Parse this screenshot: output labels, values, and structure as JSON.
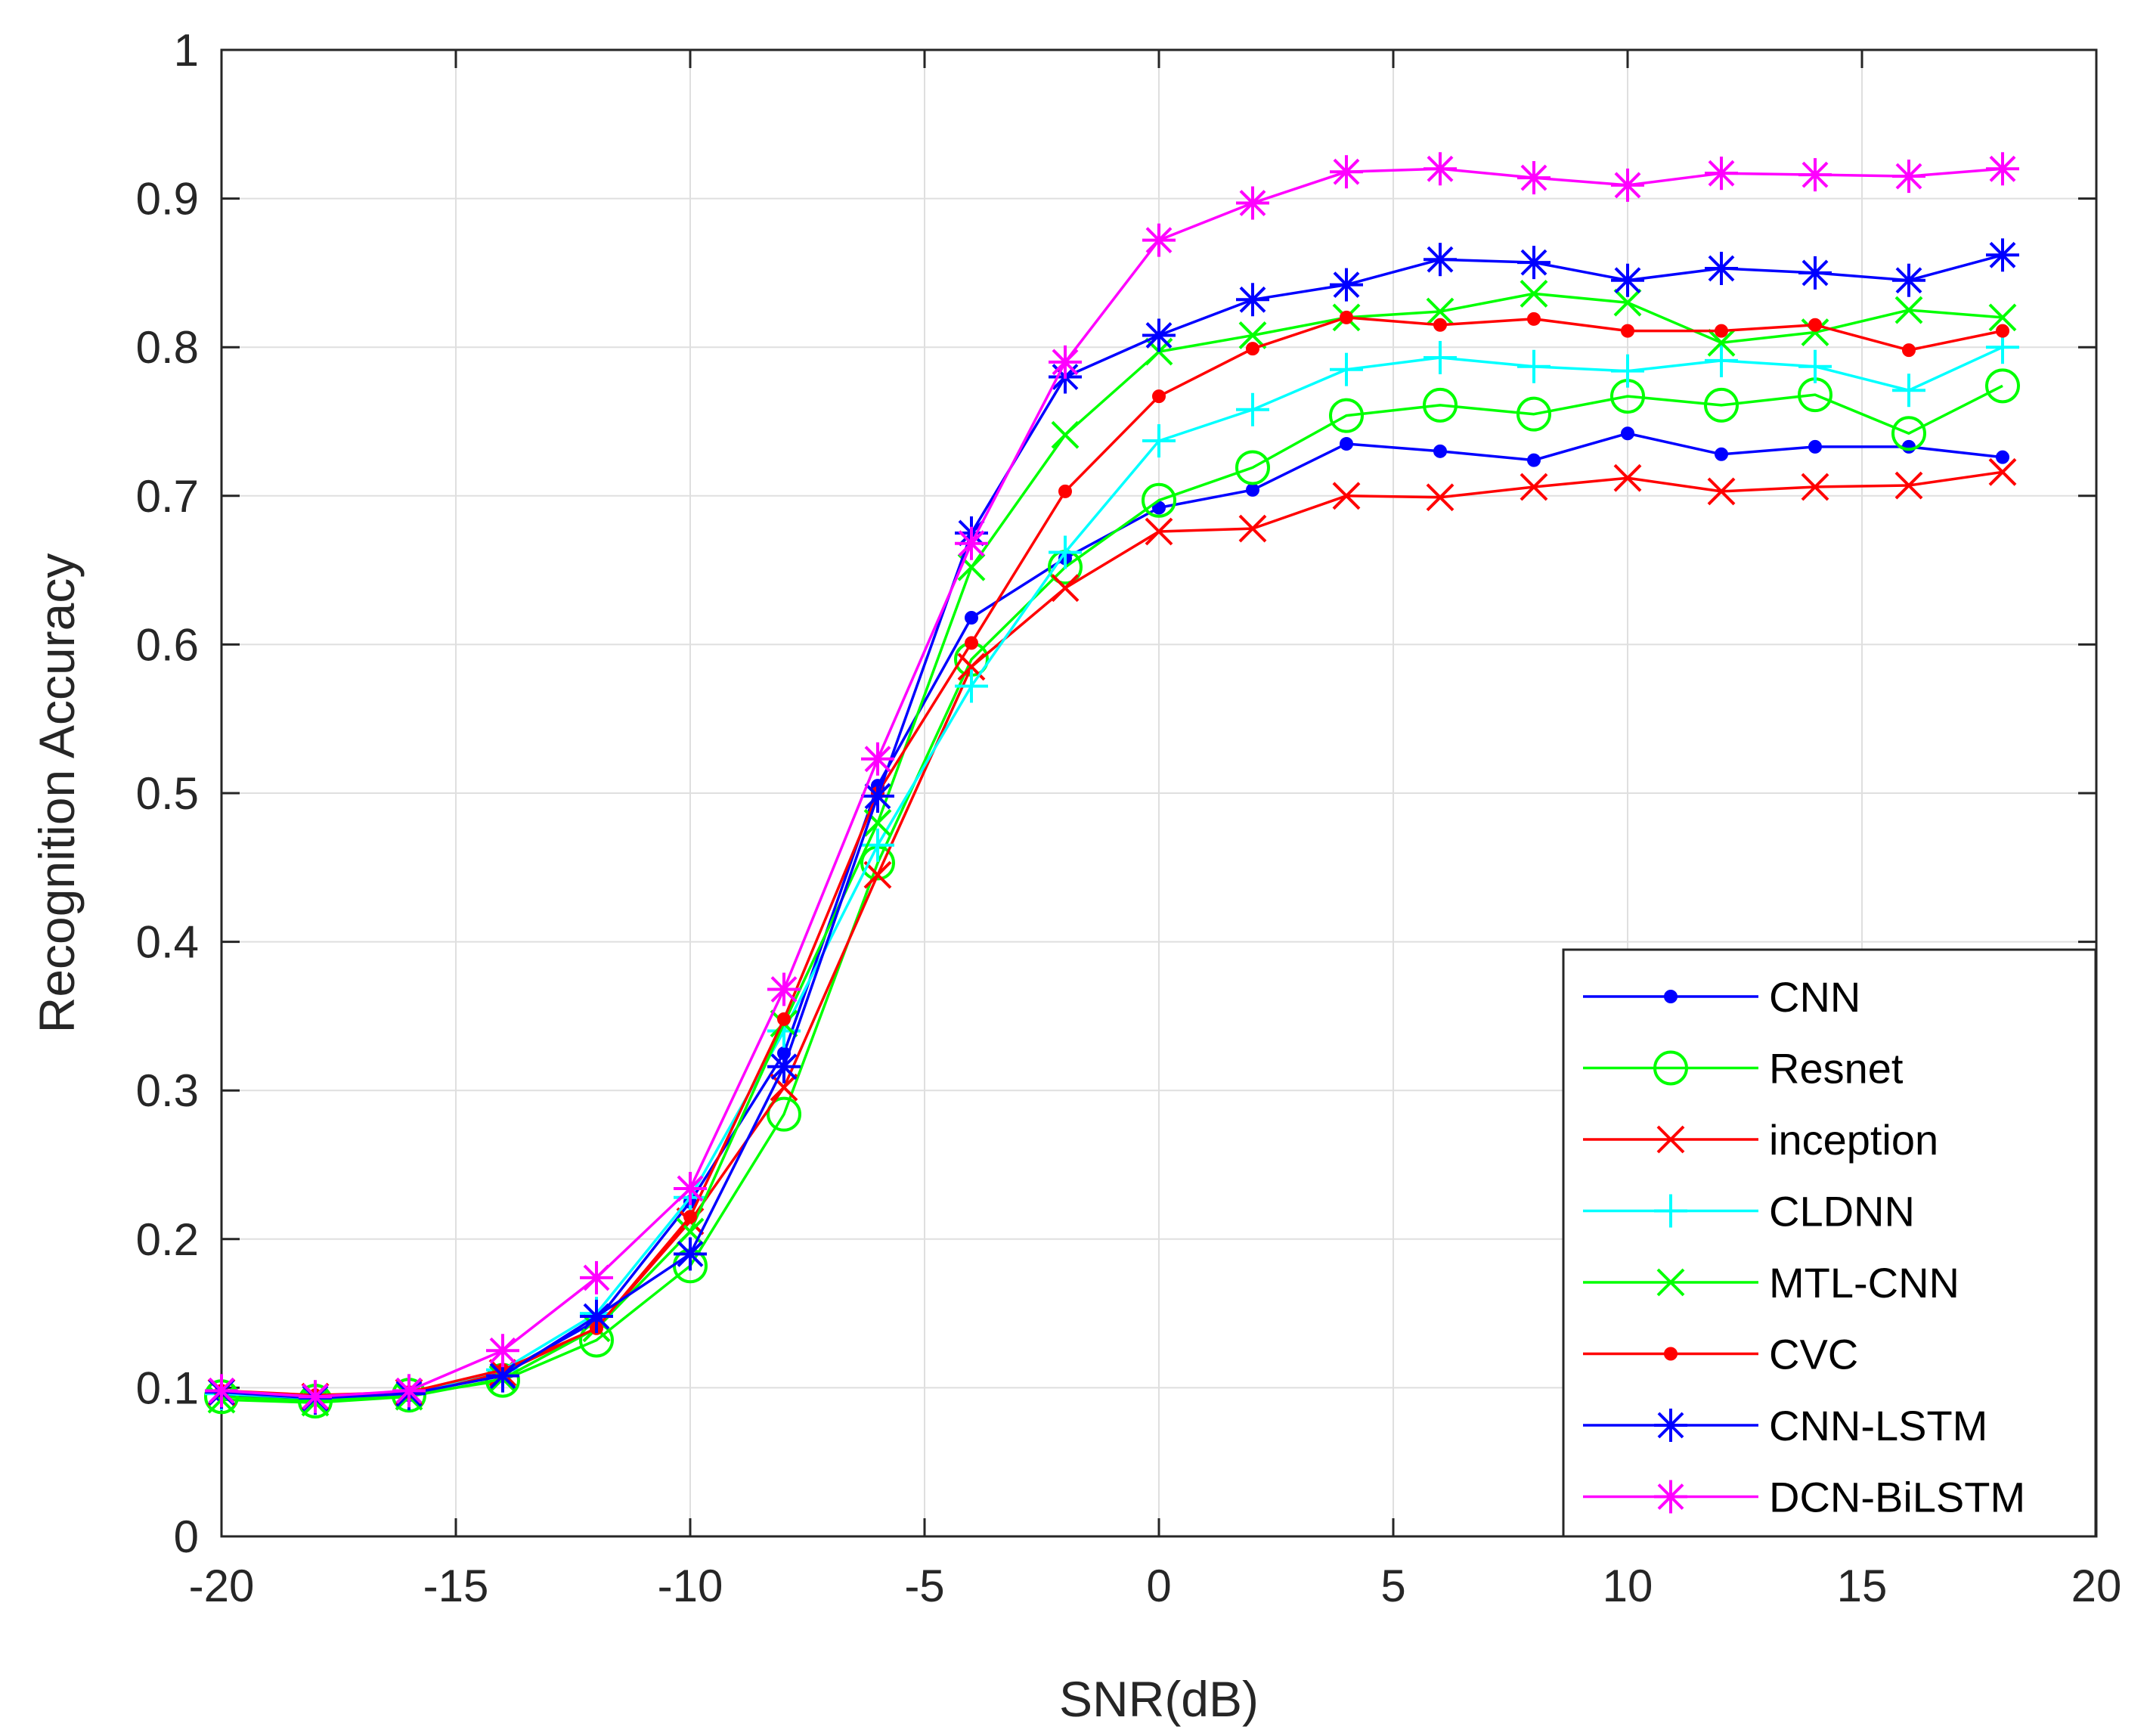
{
  "chart_data": {
    "type": "line",
    "xlabel": "SNR(dB)",
    "ylabel": "Recognition Accuracy",
    "xlim": [
      -20,
      20
    ],
    "ylim": [
      0,
      1
    ],
    "xticks": [
      -20,
      -15,
      -10,
      -5,
      0,
      5,
      10,
      15,
      20
    ],
    "yticks": [
      0,
      0.1,
      0.2,
      0.3,
      0.4,
      0.5,
      0.6,
      0.7,
      0.8,
      0.9,
      1
    ],
    "xtick_labels": [
      "-20",
      "-15",
      "-10",
      "-5",
      "0",
      "5",
      "10",
      "15",
      "20"
    ],
    "ytick_labels": [
      "0",
      "0.1",
      "0.2",
      "0.3",
      "0.4",
      "0.5",
      "0.6",
      "0.7",
      "0.8",
      "0.9",
      "1"
    ],
    "grid": true,
    "legend_position": "bottom-right",
    "x": [
      -20,
      -18,
      -16,
      -14,
      -12,
      -10,
      -8,
      -6,
      -4,
      -2,
      0,
      2,
      4,
      6,
      8,
      10,
      12,
      14,
      16,
      18
    ],
    "series": [
      {
        "name": "CNN",
        "color": "#0000ff",
        "marker": "dot",
        "values": [
          0.095,
          0.092,
          0.095,
          0.11,
          0.145,
          0.225,
          0.325,
          0.505,
          0.618,
          0.658,
          0.692,
          0.704,
          0.735,
          0.73,
          0.724,
          0.742,
          0.728,
          0.733,
          0.733,
          0.726
        ]
      },
      {
        "name": "Resnet",
        "color": "#00ff00",
        "marker": "circle",
        "values": [
          0.094,
          0.091,
          0.095,
          0.105,
          0.132,
          0.182,
          0.284,
          0.453,
          0.59,
          0.652,
          0.697,
          0.719,
          0.754,
          0.761,
          0.755,
          0.767,
          0.761,
          0.768,
          0.742,
          0.774
        ]
      },
      {
        "name": "inception",
        "color": "#ff0000",
        "marker": "x",
        "values": [
          0.097,
          0.094,
          0.097,
          0.11,
          0.14,
          0.212,
          0.302,
          0.445,
          0.585,
          0.638,
          0.676,
          0.678,
          0.7,
          0.699,
          0.706,
          0.712,
          0.703,
          0.706,
          0.707,
          0.716
        ]
      },
      {
        "name": "CLDNN",
        "color": "#00ffff",
        "marker": "plus",
        "values": [
          0.096,
          0.093,
          0.096,
          0.112,
          0.15,
          0.228,
          0.34,
          0.465,
          0.572,
          0.662,
          0.737,
          0.758,
          0.785,
          0.793,
          0.787,
          0.784,
          0.791,
          0.787,
          0.771,
          0.8
        ]
      },
      {
        "name": "MTL-CNN",
        "color": "#00ff00",
        "marker": "x",
        "values": [
          0.092,
          0.09,
          0.094,
          0.106,
          0.14,
          0.205,
          0.345,
          0.48,
          0.652,
          0.741,
          0.797,
          0.808,
          0.82,
          0.824,
          0.836,
          0.83,
          0.803,
          0.81,
          0.825,
          0.82
        ]
      },
      {
        "name": "CVC",
        "color": "#ff0000",
        "marker": "dot",
        "values": [
          0.098,
          0.095,
          0.097,
          0.112,
          0.14,
          0.215,
          0.348,
          0.5,
          0.601,
          0.703,
          0.767,
          0.799,
          0.82,
          0.815,
          0.819,
          0.811,
          0.811,
          0.815,
          0.798,
          0.811
        ]
      },
      {
        "name": "CNN-LSTM",
        "color": "#0000ff",
        "marker": "asterisk",
        "values": [
          0.097,
          0.093,
          0.096,
          0.108,
          0.148,
          0.19,
          0.316,
          0.498,
          0.675,
          0.78,
          0.808,
          0.832,
          0.842,
          0.859,
          0.857,
          0.845,
          0.853,
          0.85,
          0.845,
          0.862
        ]
      },
      {
        "name": "DCN-BiLSTM",
        "color": "#ff00ff",
        "marker": "asterisk",
        "values": [
          0.098,
          0.094,
          0.098,
          0.125,
          0.174,
          0.234,
          0.368,
          0.523,
          0.668,
          0.79,
          0.872,
          0.897,
          0.918,
          0.92,
          0.914,
          0.909,
          0.917,
          0.916,
          0.915,
          0.92
        ]
      }
    ]
  }
}
